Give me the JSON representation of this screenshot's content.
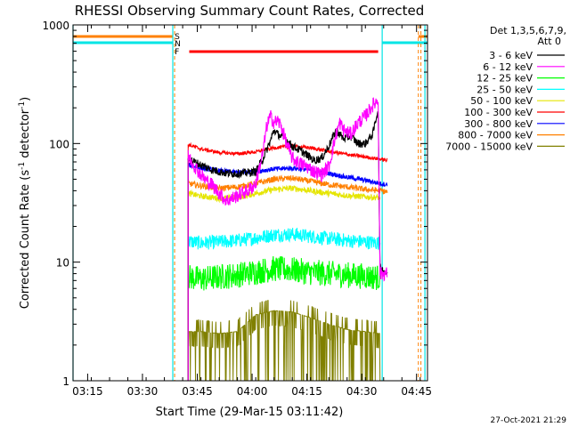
{
  "chart_data": {
    "type": "line",
    "title": "RHESSI Observing Summary Count Rates, Corrected",
    "xlabel": "Start Time (29-Mar-15 03:11:42)",
    "ylabel_main": "Corrected Count Rate (s",
    "ylabel_sup1": "-1",
    "ylabel_mid": " detector",
    "ylabel_sup2": "-1",
    "ylabel_end": ")",
    "yscale": "log",
    "ylim": [
      1,
      1000
    ],
    "xlim_minutes_after_0311": [
      0,
      97
    ],
    "x_ticks": [
      "03:15",
      "03:30",
      "03:45",
      "04:00",
      "04:15",
      "04:30",
      "04:45"
    ],
    "y_ticks": [
      "1",
      "10",
      "100",
      "1000"
    ],
    "legend_header": [
      "Det 1,3,5,6,7,9,",
      "Att 0"
    ],
    "legend_placement": "top-right outside",
    "footer_date": "27-Oct-2021 21:29",
    "flags": [
      {
        "label": "S",
        "color": "#ff8000"
      },
      {
        "label": "N",
        "color": "#00e5e5"
      },
      {
        "label": "F",
        "color": "#ff0000"
      }
    ],
    "series": [
      {
        "name": "3 - 6 keV",
        "color": "#000000",
        "points": [
          [
            31.5,
            75
          ],
          [
            34,
            68
          ],
          [
            38,
            60
          ],
          [
            42,
            56
          ],
          [
            46,
            56
          ],
          [
            50,
            58
          ],
          [
            52,
            75
          ],
          [
            54,
            105
          ],
          [
            55,
            130
          ],
          [
            56,
            120
          ],
          [
            58,
            110
          ],
          [
            60,
            95
          ],
          [
            62,
            88
          ],
          [
            64,
            80
          ],
          [
            66,
            72
          ],
          [
            68,
            75
          ],
          [
            70,
            95
          ],
          [
            72,
            130
          ],
          [
            74,
            110
          ],
          [
            76,
            115
          ],
          [
            78,
            100
          ],
          [
            80,
            100
          ],
          [
            82,
            120
          ],
          [
            83.5,
            195
          ],
          [
            84,
            9
          ],
          [
            86,
            8
          ]
        ]
      },
      {
        "name": "6 - 12 keV",
        "color": "#ff00ff",
        "points": [
          [
            31.5,
            78
          ],
          [
            34,
            60
          ],
          [
            36,
            50
          ],
          [
            38,
            45
          ],
          [
            40,
            38
          ],
          [
            42,
            33
          ],
          [
            44,
            35
          ],
          [
            46,
            38
          ],
          [
            48,
            40
          ],
          [
            50,
            46
          ],
          [
            52,
            85
          ],
          [
            53,
            140
          ],
          [
            54,
            170
          ],
          [
            55,
            150
          ],
          [
            56,
            155
          ],
          [
            57,
            140
          ],
          [
            58,
            110
          ],
          [
            59,
            90
          ],
          [
            60,
            75
          ],
          [
            62,
            68
          ],
          [
            64,
            64
          ],
          [
            66,
            58
          ],
          [
            68,
            55
          ],
          [
            70,
            64
          ],
          [
            72,
            120
          ],
          [
            73,
            150
          ],
          [
            74,
            130
          ],
          [
            76,
            120
          ],
          [
            78,
            150
          ],
          [
            80,
            170
          ],
          [
            82,
            210
          ],
          [
            83.5,
            235
          ],
          [
            84,
            8
          ],
          [
            86,
            8
          ]
        ]
      },
      {
        "name": "12 - 25 keV",
        "color": "#00ff00",
        "points": [
          [
            31.5,
            7.5
          ],
          [
            35,
            7.2
          ],
          [
            40,
            7.5
          ],
          [
            45,
            7.8
          ],
          [
            50,
            8.3
          ],
          [
            55,
            8.8
          ],
          [
            60,
            8.6
          ],
          [
            65,
            8.2
          ],
          [
            70,
            8.0
          ],
          [
            75,
            7.8
          ],
          [
            80,
            7.6
          ],
          [
            84,
            7.4
          ]
        ]
      },
      {
        "name": "25 - 50 keV",
        "color": "#00ffff",
        "points": [
          [
            31.5,
            15
          ],
          [
            35,
            14.5
          ],
          [
            40,
            14.8
          ],
          [
            45,
            15.2
          ],
          [
            50,
            16
          ],
          [
            55,
            17
          ],
          [
            60,
            17.2
          ],
          [
            65,
            16.5
          ],
          [
            70,
            15.8
          ],
          [
            75,
            15.2
          ],
          [
            80,
            14.8
          ],
          [
            84,
            14.5
          ]
        ]
      },
      {
        "name": "50 - 100 keV",
        "color": "#e5e500",
        "points": [
          [
            31.5,
            38
          ],
          [
            35,
            36
          ],
          [
            40,
            34.5
          ],
          [
            45,
            35
          ],
          [
            50,
            38
          ],
          [
            55,
            41
          ],
          [
            60,
            42
          ],
          [
            65,
            40
          ],
          [
            70,
            38
          ],
          [
            75,
            36.5
          ],
          [
            80,
            35.5
          ],
          [
            84,
            35
          ]
        ]
      },
      {
        "name": "100 - 300 keV",
        "color": "#ff0000",
        "points": [
          [
            31.5,
            98
          ],
          [
            35,
            90
          ],
          [
            40,
            84
          ],
          [
            45,
            82
          ],
          [
            50,
            85
          ],
          [
            55,
            92
          ],
          [
            60,
            95
          ],
          [
            65,
            92
          ],
          [
            70,
            86
          ],
          [
            75,
            81
          ],
          [
            80,
            77
          ],
          [
            84,
            74
          ],
          [
            86,
            72
          ]
        ]
      },
      {
        "name": "300 - 800 keV",
        "color": "#0000ff",
        "points": [
          [
            31.5,
            66
          ],
          [
            35,
            62
          ],
          [
            40,
            59
          ],
          [
            45,
            57
          ],
          [
            50,
            58
          ],
          [
            55,
            61
          ],
          [
            60,
            62
          ],
          [
            65,
            60
          ],
          [
            70,
            56
          ],
          [
            75,
            52
          ],
          [
            80,
            49
          ],
          [
            84,
            46
          ],
          [
            86,
            45
          ]
        ]
      },
      {
        "name": "800 - 7000 keV",
        "color": "#ff8000",
        "points": [
          [
            31.5,
            46
          ],
          [
            35,
            44
          ],
          [
            40,
            42
          ],
          [
            45,
            43
          ],
          [
            50,
            46
          ],
          [
            55,
            50
          ],
          [
            60,
            51
          ],
          [
            65,
            48
          ],
          [
            70,
            45
          ],
          [
            75,
            43
          ],
          [
            80,
            41
          ],
          [
            84,
            40
          ],
          [
            86,
            39
          ]
        ]
      },
      {
        "name": "7000 - 15000 keV",
        "color": "#808000",
        "points": [
          [
            31.5,
            2.6
          ],
          [
            35,
            2.6
          ],
          [
            40,
            2.5
          ],
          [
            45,
            2.6
          ],
          [
            50,
            3.6
          ],
          [
            55,
            3.9
          ],
          [
            60,
            3.8
          ],
          [
            65,
            3.4
          ],
          [
            70,
            3.0
          ],
          [
            75,
            2.7
          ],
          [
            80,
            2.6
          ],
          [
            84,
            2.5
          ]
        ]
      }
    ]
  }
}
